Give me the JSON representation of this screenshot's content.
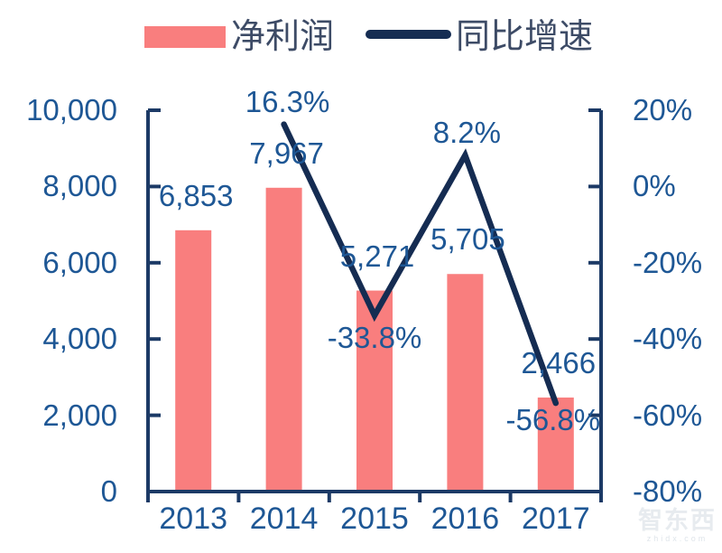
{
  "legend": {
    "bar_label": "净利润",
    "line_label": "同比增速"
  },
  "watermark": {
    "title": "智东西",
    "subtitle": "zhidx.com"
  },
  "colors": {
    "bar": "#f97e7e",
    "line": "#152c52",
    "axis": "#1c3a66",
    "tick_text": "#1e5795",
    "legend_text": "#3d4b66"
  },
  "chart_data": {
    "type": "bar",
    "title": "",
    "grid": false,
    "legend_position": "top",
    "categories": [
      "2013",
      "2014",
      "2015",
      "2016",
      "2017"
    ],
    "series": [
      {
        "name": "净利润",
        "type": "bar",
        "axis": "left",
        "values": [
          6853,
          7967,
          5271,
          5705,
          2466
        ],
        "labels": [
          "6,853",
          "7,967",
          "5,271",
          "5,705",
          "2,466"
        ]
      },
      {
        "name": "同比增速",
        "type": "line",
        "axis": "right",
        "values": [
          null,
          16.3,
          -33.8,
          8.2,
          -56.8
        ],
        "labels": [
          null,
          "16.3%",
          "-33.8%",
          "8.2%",
          "-56.8%"
        ]
      }
    ],
    "left_axis": {
      "min": 0,
      "max": 10000,
      "ticks": [
        {
          "v": 10000,
          "label": "10,000"
        },
        {
          "v": 8000,
          "label": "8,000"
        },
        {
          "v": 6000,
          "label": "6,000"
        },
        {
          "v": 4000,
          "label": "4,000"
        },
        {
          "v": 2000,
          "label": "2,000"
        },
        {
          "v": 0,
          "label": "0"
        }
      ]
    },
    "right_axis": {
      "min": -80,
      "max": 20,
      "ticks": [
        {
          "v": 20,
          "label": "20%"
        },
        {
          "v": 0,
          "label": "0%"
        },
        {
          "v": -20,
          "label": "-20%"
        },
        {
          "v": -40,
          "label": "-40%"
        },
        {
          "v": -60,
          "label": "-60%"
        },
        {
          "v": -80,
          "label": "-80%"
        }
      ]
    }
  }
}
